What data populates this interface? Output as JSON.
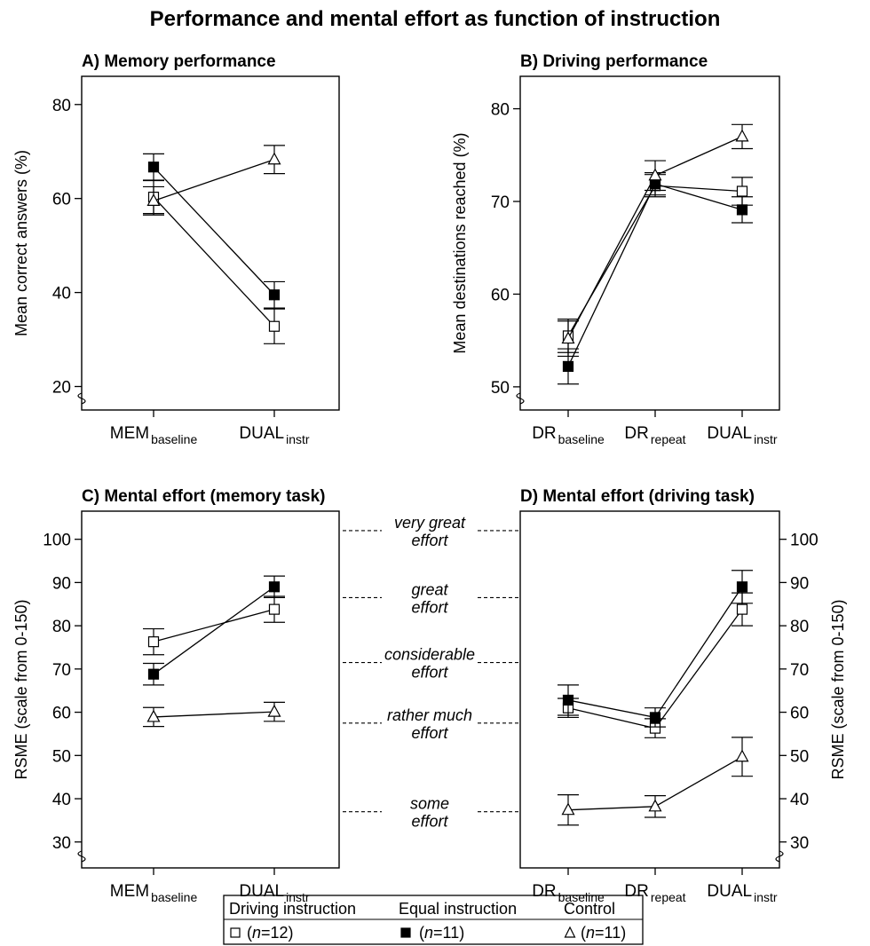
{
  "title": "Performance and mental effort as function of instruction",
  "chart_data": [
    {
      "id": "A",
      "type": "line",
      "title": "A) Memory performance",
      "ylabel": "Mean correct answers (%)",
      "ylim": [
        15,
        86
      ],
      "yticks": [
        20,
        40,
        60,
        80
      ],
      "categories": [
        {
          "main": "MEM",
          "sub": "baseline"
        },
        {
          "main": "DUAL",
          "sub": "instr"
        }
      ],
      "series": [
        {
          "name": "Driving instruction",
          "marker": "open-square",
          "values": [
            60.3,
            32.8
          ],
          "errors": [
            3.5,
            3.7
          ]
        },
        {
          "name": "Equal instruction",
          "marker": "filled-square",
          "values": [
            66.7,
            39.5
          ],
          "errors": [
            2.8,
            2.8
          ]
        },
        {
          "name": "Control",
          "marker": "open-triangle",
          "values": [
            59.5,
            68.3
          ],
          "errors": [
            3.0,
            3.0
          ]
        }
      ]
    },
    {
      "id": "B",
      "type": "line",
      "title": "B) Driving performance",
      "ylabel": "Mean destinations reached (%)",
      "ylim": [
        47.5,
        83.5
      ],
      "yticks": [
        50,
        60,
        70,
        80
      ],
      "categories": [
        {
          "main": "DR",
          "sub": "baseline"
        },
        {
          "main": "DR",
          "sub": "repeat"
        },
        {
          "main": "DUAL",
          "sub": "instr"
        }
      ],
      "series": [
        {
          "name": "Driving instruction",
          "marker": "open-square",
          "values": [
            55.5,
            71.7,
            71.1
          ],
          "errors": [
            1.8,
            1.2,
            1.5
          ]
        },
        {
          "name": "Equal instruction",
          "marker": "filled-square",
          "values": [
            52.2,
            71.9,
            69.1
          ],
          "errors": [
            1.9,
            1.2,
            1.4
          ]
        },
        {
          "name": "Control",
          "marker": "open-triangle",
          "values": [
            55.2,
            72.8,
            77.0
          ],
          "errors": [
            1.9,
            1.6,
            1.3
          ]
        }
      ]
    },
    {
      "id": "C",
      "type": "line",
      "title": "C) Mental effort (memory task)",
      "ylabel": "RSME (scale from 0-150)",
      "ylim": [
        24,
        106.5
      ],
      "yticks": [
        30,
        40,
        50,
        60,
        70,
        80,
        90,
        100
      ],
      "categories": [
        {
          "main": "MEM",
          "sub": "baseline"
        },
        {
          "main": "DUAL",
          "sub": "instr"
        }
      ],
      "series": [
        {
          "name": "Driving instruction",
          "marker": "open-square",
          "values": [
            76.3,
            83.8
          ],
          "errors": [
            3.0,
            3.0
          ]
        },
        {
          "name": "Equal instruction",
          "marker": "filled-square",
          "values": [
            68.8,
            89.0
          ],
          "errors": [
            2.5,
            2.5
          ]
        },
        {
          "name": "Control",
          "marker": "open-triangle",
          "values": [
            58.9,
            60.1
          ],
          "errors": [
            2.2,
            2.2
          ]
        }
      ]
    },
    {
      "id": "D",
      "type": "line",
      "title": "D) Mental effort (driving task)",
      "ylabel": "RSME (scale from 0-150)",
      "ylim": [
        24,
        106.5
      ],
      "yticks": [
        30,
        40,
        50,
        60,
        70,
        80,
        90,
        100
      ],
      "categories": [
        {
          "main": "DR",
          "sub": "baseline"
        },
        {
          "main": "DR",
          "sub": "repeat"
        },
        {
          "main": "DUAL",
          "sub": "instr"
        }
      ],
      "series": [
        {
          "name": "Driving instruction",
          "marker": "open-square",
          "values": [
            61.0,
            56.3,
            83.8
          ],
          "errors": [
            2.2,
            2.2,
            3.8
          ]
        },
        {
          "name": "Equal instruction",
          "marker": "filled-square",
          "values": [
            62.8,
            58.8,
            89.0
          ],
          "errors": [
            3.5,
            2.2,
            3.8
          ]
        },
        {
          "name": "Control",
          "marker": "open-triangle",
          "values": [
            37.4,
            38.2,
            49.7
          ],
          "errors": [
            3.5,
            2.5,
            4.5
          ]
        }
      ]
    }
  ],
  "effort_scale": [
    {
      "line1": "very great",
      "line2": "effort",
      "value": 102
    },
    {
      "line1": "great",
      "line2": "effort",
      "value": 86.5
    },
    {
      "line1": "considerable",
      "line2": "effort",
      "value": 71.5
    },
    {
      "line1": "rather much",
      "line2": "effort",
      "value": 57.5
    },
    {
      "line1": "some",
      "line2": "effort",
      "value": 37
    }
  ],
  "legend": {
    "headers": [
      "Driving instruction",
      "Equal instruction",
      "Control"
    ],
    "entries": [
      {
        "symbol": "□",
        "n_prefix": "(",
        "n_var": "n",
        "n_value": "=12)"
      },
      {
        "symbol": "■",
        "n_prefix": "(",
        "n_var": "n",
        "n_value": "=11)"
      },
      {
        "symbol": "△",
        "n_prefix": "(",
        "n_var": "n",
        "n_value": "=11)"
      }
    ]
  }
}
